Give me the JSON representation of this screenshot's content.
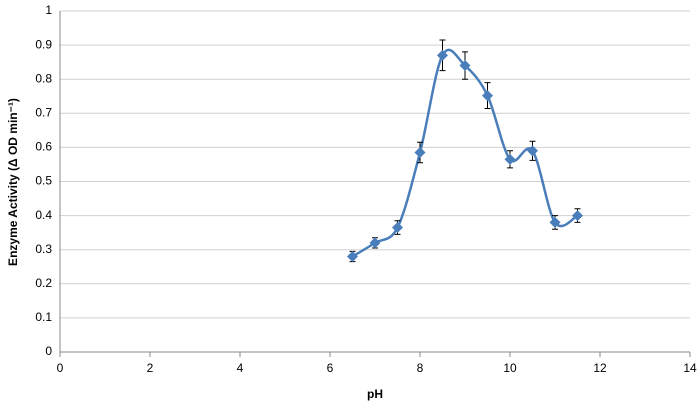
{
  "chart_data": {
    "type": "scatter",
    "x_label": "pH",
    "y_label": "Enzyme Activity (Δ OD min⁻¹)",
    "x": [
      6.5,
      7,
      7.5,
      8,
      8.5,
      9,
      9.5,
      10,
      10.5,
      11,
      11.5
    ],
    "series": [
      {
        "color": "#4a7ebb",
        "values": [
          0.28,
          0.32,
          0.365,
          0.585,
          0.87,
          0.84,
          0.752,
          0.565,
          0.59,
          0.38,
          0.4
        ],
        "errors": [
          0.015,
          0.015,
          0.02,
          0.03,
          0.045,
          0.04,
          0.038,
          0.025,
          0.028,
          0.02,
          0.02
        ]
      }
    ],
    "smooth": true,
    "xlim": [
      0,
      14
    ],
    "xticks": [
      0,
      2,
      4,
      6,
      8,
      10,
      12,
      14
    ],
    "ylim": [
      0,
      1
    ],
    "yticks": [
      0,
      0.1,
      0.2,
      0.3,
      0.4,
      0.5,
      0.6,
      0.7,
      0.8,
      0.9,
      1
    ],
    "grid": true
  }
}
